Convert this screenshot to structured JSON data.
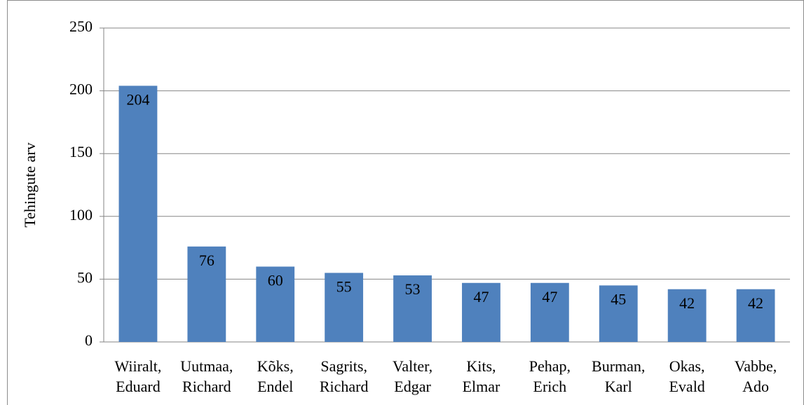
{
  "chart_data": {
    "type": "bar",
    "y_label": "Tehingute arv",
    "categories": [
      [
        "Wiiralt,",
        "Eduard"
      ],
      [
        "Uutmaa,",
        "Richard"
      ],
      [
        "Kõks,",
        "Endel"
      ],
      [
        "Sagrits,",
        "Richard"
      ],
      [
        "Valter,",
        "Edgar"
      ],
      [
        "Kits,",
        "Elmar"
      ],
      [
        "Pehap,",
        "Erich"
      ],
      [
        "Burman,",
        "Karl"
      ],
      [
        "Okas,",
        "Evald"
      ],
      [
        "Vabbe,",
        "Ado"
      ]
    ],
    "values": [
      204,
      76,
      60,
      55,
      53,
      47,
      47,
      45,
      42,
      42
    ],
    "color": "#4f81bd",
    "ylim": [
      0,
      250
    ],
    "yticks": [
      0,
      50,
      100,
      150,
      200,
      250
    ],
    "grid": true,
    "data_labels": true
  }
}
